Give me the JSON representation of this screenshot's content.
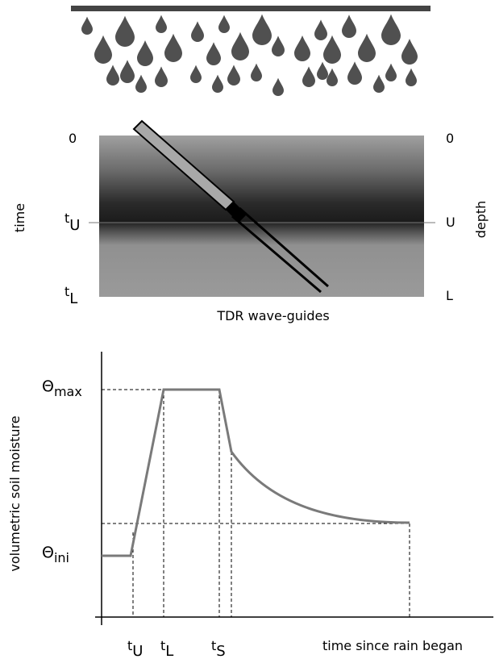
{
  "colors": {
    "drop": "#505050",
    "bar": "#444444",
    "soil_light": "#9a9a9a",
    "soil_dark": "#1e1e1e",
    "curve": "#7a7a7a",
    "probe_fill": "#a8a8a8"
  },
  "diagram": {
    "left_axis": {
      "label": "time",
      "ticks": [
        {
          "main": "0",
          "sub": ""
        },
        {
          "main": "t",
          "sub": "U"
        },
        {
          "main": "t",
          "sub": "L"
        }
      ]
    },
    "right_axis": {
      "label": "depth",
      "ticks": [
        "0",
        "U",
        "L"
      ]
    },
    "caption": "TDR wave-guides"
  },
  "chart_data": {
    "type": "line",
    "title": "",
    "xlabel": "time since rain began",
    "ylabel": "volumetric soil moisture",
    "x_ticks": [
      {
        "main": "t",
        "sub": "U"
      },
      {
        "main": "t",
        "sub": "L"
      },
      {
        "main": "t",
        "sub": "S"
      }
    ],
    "y_ticks": [
      {
        "main": "Θ",
        "sub": "max"
      },
      {
        "main": "Θ",
        "sub": "ini"
      }
    ],
    "series": [
      {
        "x": [
          "0",
          "t_U",
          "t_L",
          "t_S",
          "t_S+",
          "end"
        ],
        "y": [
          "Θ_ini",
          "Θ_ini",
          "Θ_max",
          "Θ_max",
          "recession",
          "equilibrium"
        ]
      }
    ]
  }
}
